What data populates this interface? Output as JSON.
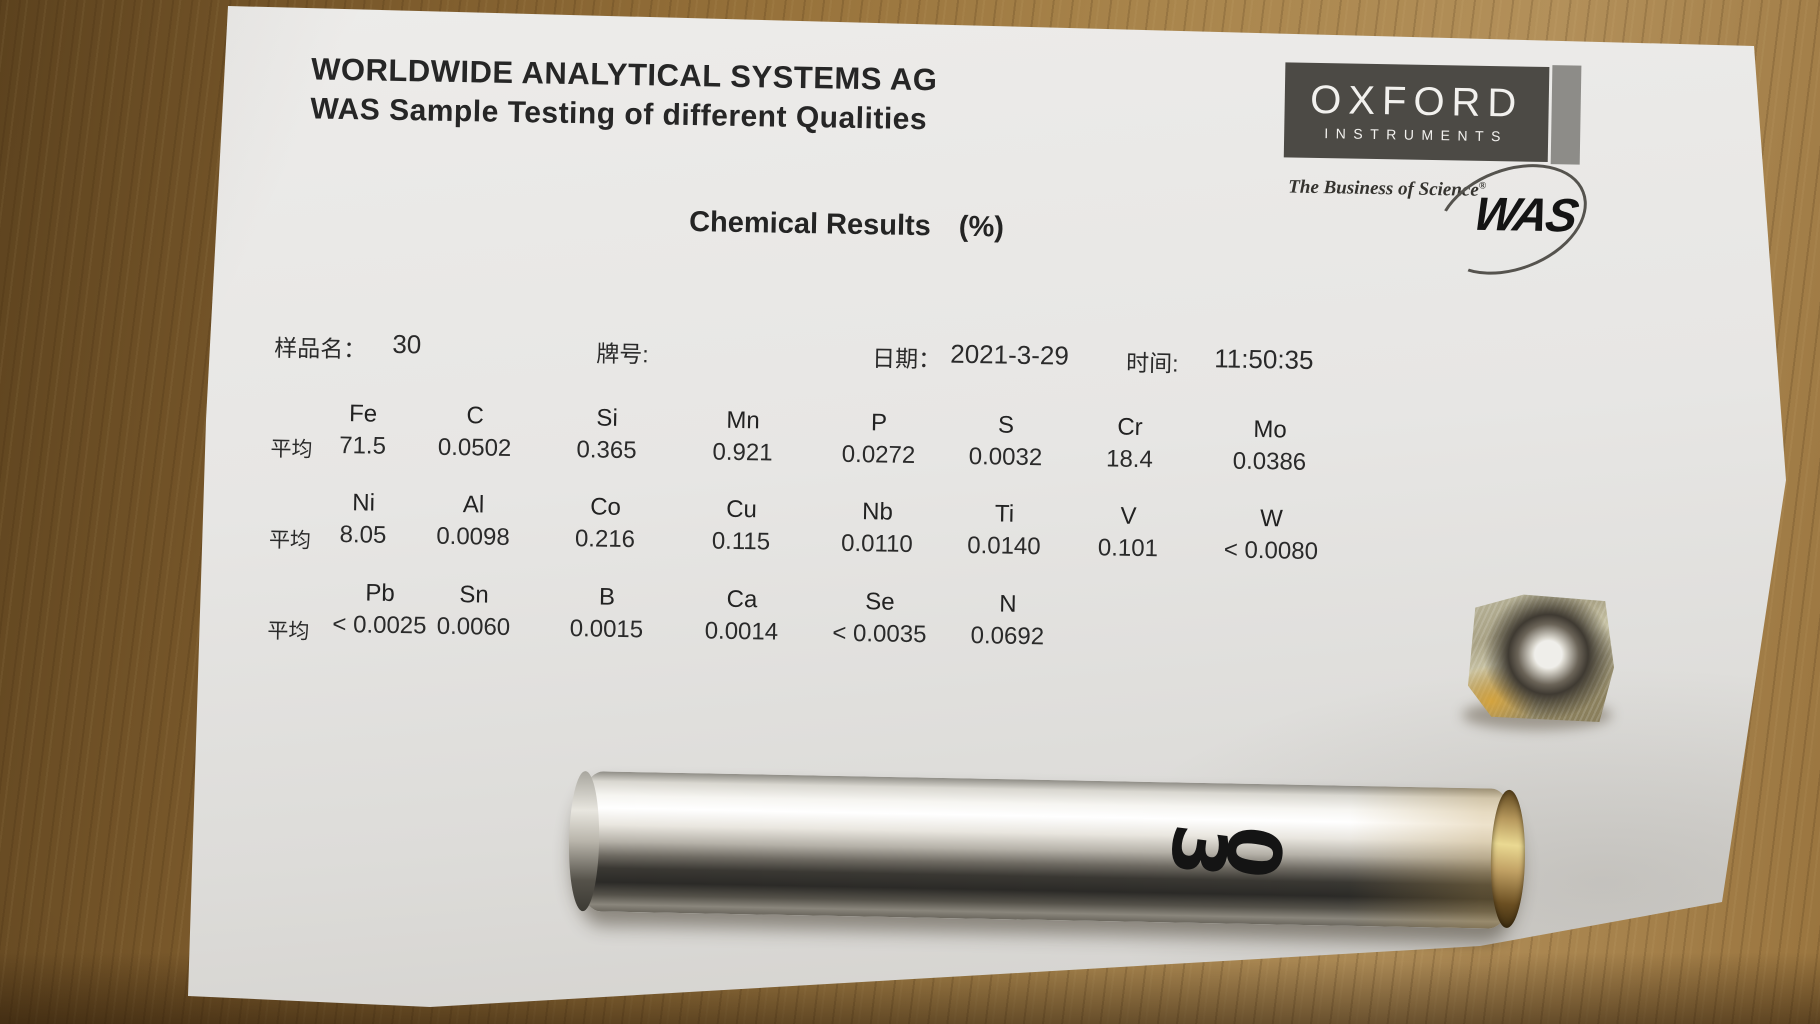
{
  "header": {
    "line1": "WORLDWIDE ANALYTICAL SYSTEMS AG",
    "line2": "WAS Sample Testing of different Qualities"
  },
  "logo": {
    "brand": "OXFORD",
    "sub": "INSTRUMENTS",
    "tagline": "The Business of Science",
    "reg_mark": "®",
    "mark": "WAS"
  },
  "title": {
    "text": "Chemical Results",
    "unit": "(%)"
  },
  "info": {
    "sample_label": "样品名：",
    "sample_value": "30",
    "grade_label": "牌号:",
    "date_label": "日期：",
    "date_value": "2021-3-29",
    "time_label": "时间:",
    "time_value": "11:50:35"
  },
  "results": {
    "rows": [
      {
        "row_label": "平均",
        "cells": [
          {
            "element": "Fe",
            "value": "71.5"
          },
          {
            "element": "C",
            "value": "0.0502"
          },
          {
            "element": "Si",
            "value": "0.365"
          },
          {
            "element": "Mn",
            "value": "0.921"
          },
          {
            "element": "P",
            "value": "0.0272"
          },
          {
            "element": "S",
            "value": "0.0032"
          },
          {
            "element": "Cr",
            "value": "18.4"
          },
          {
            "element": "Mo",
            "value": "0.0386"
          }
        ]
      },
      {
        "row_label": "平均",
        "cells": [
          {
            "element": "Ni",
            "value": "8.05"
          },
          {
            "element": "Al",
            "value": "0.0098"
          },
          {
            "element": "Co",
            "value": "0.216"
          },
          {
            "element": "Cu",
            "value": "0.115"
          },
          {
            "element": "Nb",
            "value": "0.0110"
          },
          {
            "element": "Ti",
            "value": "0.0140"
          },
          {
            "element": "V",
            "value": "0.101"
          },
          {
            "element": "W",
            "value": "< 0.0080"
          }
        ]
      },
      {
        "row_label": "平均",
        "cells": [
          {
            "element": "Pb",
            "value": "< 0.0025"
          },
          {
            "element": "Sn",
            "value": "0.0060"
          },
          {
            "element": "B",
            "value": "0.0015"
          },
          {
            "element": "Ca",
            "value": "0.0014"
          },
          {
            "element": "Se",
            "value": "< 0.0035"
          },
          {
            "element": "N",
            "value": "0.0692"
          }
        ]
      }
    ]
  },
  "tube": {
    "marking": "30"
  },
  "colors": {
    "paper": "#e7e6e4",
    "ink": "#2a2a2a",
    "wood": "#96713a",
    "logo_box": "#4c4a45"
  }
}
